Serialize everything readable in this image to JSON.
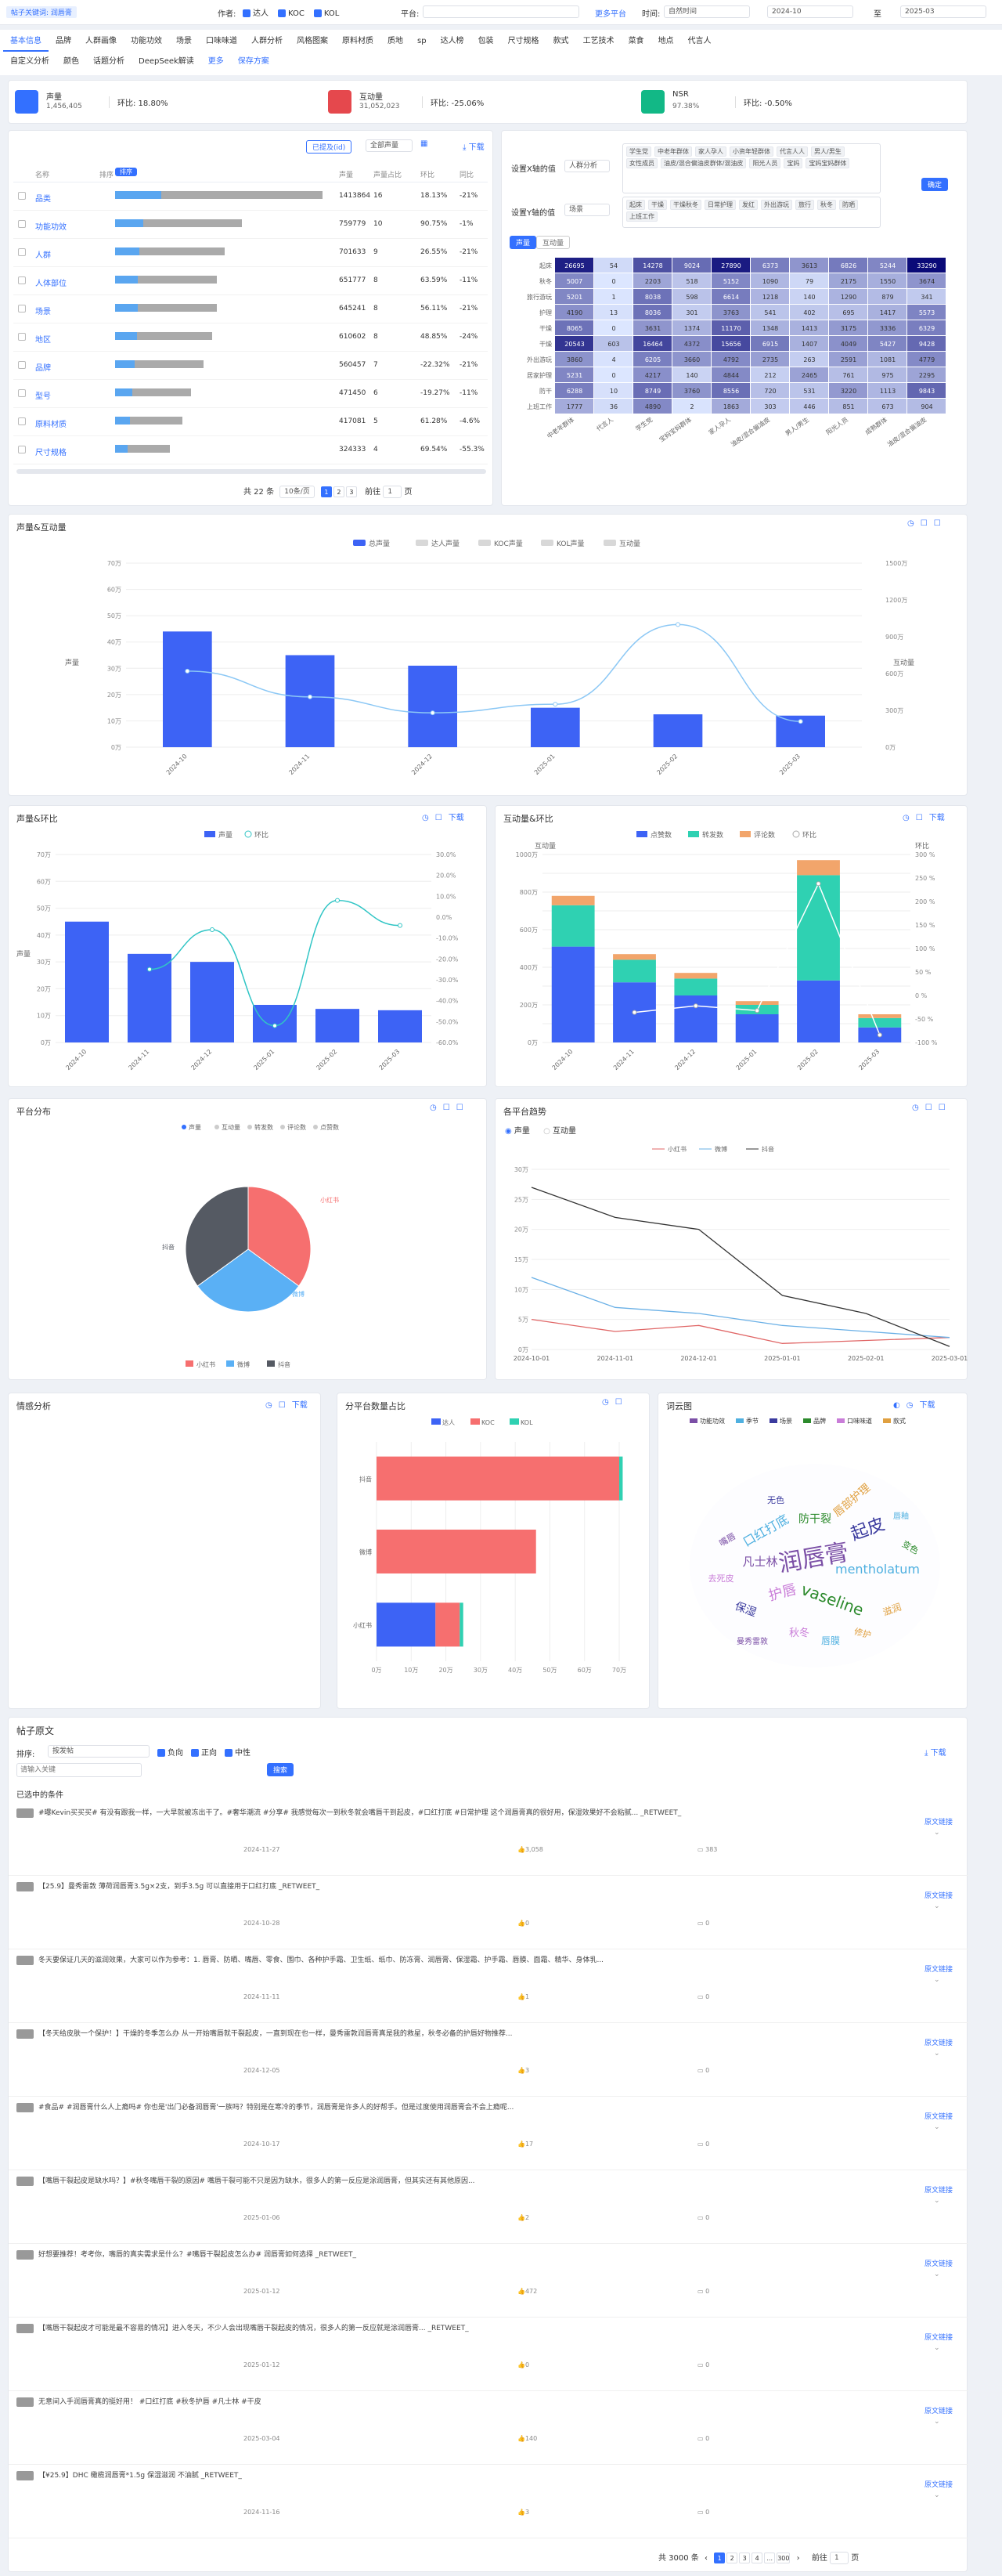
{
  "header": {
    "breadcrumb": "帖子关键词: 润唇膏",
    "author_label": "作者:",
    "author_types": [
      {
        "label": "达人",
        "checked": true
      },
      {
        "label": "KOC",
        "checked": true
      },
      {
        "label": "KOL",
        "checked": true
      }
    ],
    "platform_label": "平台:",
    "platform_value": "",
    "more_platforms": "更多平台",
    "time_label": "时间:",
    "time_select": "自然时间",
    "date_from": "2024-10",
    "date_to_label": "至",
    "date_to": "2025-03"
  },
  "nav": {
    "tabs": [
      "基本信息",
      "品牌",
      "人群画像",
      "功能功效",
      "场景",
      "口味味道",
      "人群分析",
      "风格图案",
      "原料材质",
      "质地",
      "sp",
      "达人榜",
      "包装",
      "尺寸规格",
      "款式",
      "工艺技术",
      "菜食",
      "地点",
      "代言人"
    ],
    "tabs2": [
      "自定义分析",
      "颜色",
      "话题分析",
      "DeepSeek解读",
      "更多",
      "保存方案"
    ]
  },
  "kpis": [
    {
      "label": "声量",
      "value": "1,456,405",
      "ratio": "环比: 18.80%"
    },
    {
      "label": "互动量",
      "value": "31,052,023",
      "ratio": "环比: -25.06%"
    },
    {
      "label": "NSR",
      "value": "97.38%",
      "ratio": "环比: -0.50%"
    }
  ],
  "rank": {
    "filters": [
      "已提及(id)",
      "全部声量"
    ],
    "download": "下载",
    "headers": [
      "",
      "名称",
      "排序",
      "",
      "声量",
      "声量占比",
      "环比",
      "同比"
    ],
    "rows": [
      {
        "name": "品类",
        "share": "1413864",
        "pct": "16",
        "mom": "18.13%",
        "yoy": "-21%",
        "bar": 0.98
      },
      {
        "name": "功能功效",
        "share": "759779",
        "pct": "10",
        "mom": "90.75%",
        "yoy": "-1%",
        "bar": 0.6
      },
      {
        "name": "人群",
        "share": "701633",
        "pct": "9",
        "mom": "26.55%",
        "yoy": "-21%",
        "bar": 0.52
      },
      {
        "name": "人体部位",
        "share": "651777",
        "pct": "8",
        "mom": "63.59%",
        "yoy": "-11%",
        "bar": 0.48
      },
      {
        "name": "场景",
        "share": "645241",
        "pct": "8",
        "mom": "56.11%",
        "yoy": "-21%",
        "bar": 0.48
      },
      {
        "name": "地区",
        "share": "610602",
        "pct": "8",
        "mom": "48.85%",
        "yoy": "-24%",
        "bar": 0.46
      },
      {
        "name": "品牌",
        "share": "560457",
        "pct": "7",
        "mom": "-22.32%",
        "yoy": "-21%",
        "bar": 0.42
      },
      {
        "name": "型号",
        "share": "471450",
        "pct": "6",
        "mom": "-19.27%",
        "yoy": "-11%",
        "bar": 0.36
      },
      {
        "name": "原料材质",
        "share": "417081",
        "pct": "5",
        "mom": "61.28%",
        "yoy": "-4.6%",
        "bar": 0.32
      },
      {
        "name": "尺寸规格",
        "share": "324333",
        "pct": "4",
        "mom": "69.54%",
        "yoy": "-55.3%",
        "bar": 0.26
      }
    ],
    "total": "共 22 条",
    "per_page": "10条/页",
    "pages": [
      "1",
      "2",
      "3"
    ],
    "goto": "前往",
    "page_num": "1",
    "page_unit": "页"
  },
  "heat": {
    "xlabel": "设置X轴的值",
    "xselect": "人群分析",
    "ylabel": "设置Y轴的值",
    "yselect": "场景",
    "xtags": [
      "学生党",
      "中老年群体",
      "家人孕人",
      "小资年轻群体",
      "代言人人",
      "男人/男生",
      "女性成员",
      "油皮/混合偏油皮群体/混油皮",
      "阳光人员",
      "宝妈",
      "宝妈宝妈群体"
    ],
    "ytags": [
      "起床",
      "干燥",
      "干燥秋冬",
      "日常护理",
      "发红",
      "外出游玩",
      "旅行",
      "秋冬",
      "防晒",
      "上班工作"
    ],
    "confirm": "确定",
    "tabs": [
      "声量",
      "互动量"
    ],
    "rows": [
      "起床",
      "秋冬",
      "旅行游玩",
      "护理",
      "干燥",
      "干燥",
      "外出游玩",
      "居家护理",
      "防干",
      "上班工作"
    ],
    "cols": [
      "中老年群体",
      "代言人",
      "学生党",
      "宝妈宝妈群体",
      "家人孕人",
      "油皮/混合偏油皮",
      "男人/男生",
      "阳光人员",
      "成熟群体",
      "油皮/混合偏油皮"
    ],
    "values": [
      [
        26695,
        54,
        14278,
        9024,
        27890,
        6373,
        3613,
        6826,
        5244,
        33290
      ],
      [
        5007,
        0,
        2203,
        518,
        5152,
        1090,
        79,
        2175,
        1550,
        3674
      ],
      [
        5201,
        1,
        8038,
        598,
        6614,
        1218,
        140,
        1290,
        879,
        341
      ],
      [
        4190,
        13,
        8036,
        301,
        3763,
        541,
        402,
        695,
        1417,
        5573
      ],
      [
        8065,
        0,
        3631,
        1374,
        11170,
        1348,
        1413,
        3175,
        3336,
        6329
      ],
      [
        20543,
        603,
        16464,
        4372,
        15656,
        6915,
        1407,
        4049,
        5427,
        9428
      ],
      [
        3860,
        4,
        6205,
        3660,
        4792,
        2735,
        263,
        2591,
        1081,
        4779
      ],
      [
        5231,
        0,
        4217,
        140,
        4844,
        212,
        2465,
        761,
        975,
        2295
      ],
      [
        6288,
        10,
        8749,
        3760,
        8556,
        720,
        531,
        3220,
        1113,
        9843
      ],
      [
        1777,
        36,
        4890,
        2,
        1863,
        303,
        446,
        851,
        673,
        904
      ]
    ]
  },
  "combo1": {
    "title": "声量&互动量",
    "legend": [
      "总声量",
      "达人声量",
      "KOC声量",
      "KOL声量",
      "互动量"
    ],
    "ylabel_left": "声量",
    "ylabel_right": "互动量",
    "categories": [
      "2024-10",
      "2024-11",
      "2024-12",
      "2025-01",
      "2025-02",
      "2025-03"
    ]
  },
  "combo2": {
    "title": "声量&环比",
    "download": "下载",
    "legend": [
      "声量",
      "环比"
    ],
    "ylabel": "声量",
    "categories": [
      "2024-10",
      "2024-11",
      "2024-12",
      "2025-01",
      "2025-02",
      "2025-03"
    ]
  },
  "combo3": {
    "title": "互动量&环比",
    "download": "下载",
    "legend": [
      "点赞数",
      "转发数",
      "评论数",
      "环比"
    ],
    "ylabel_left": "互动量",
    "ylabel_right": "环比",
    "categories": [
      "2024-10",
      "2024-11",
      "2024-12",
      "2025-01",
      "2025-02",
      "2025-03"
    ]
  },
  "pie": {
    "title": "平台分布",
    "legend_top": [
      "声量",
      "互动量",
      "转发数",
      "评论数",
      "点赞数"
    ],
    "legend": [
      "小红书",
      "微博",
      "抖音"
    ],
    "labels": [
      "小红书",
      "微博",
      "抖音"
    ]
  },
  "trend": {
    "title": "各平台趋势",
    "radio": [
      "声量",
      "互动量"
    ],
    "legend": [
      "小红书",
      "微博",
      "抖音"
    ],
    "categories": [
      "2024-10-01",
      "2024-11-01",
      "2024-12-01",
      "2025-01-01",
      "2025-02-01",
      "2025-03-01"
    ]
  },
  "emotion": {
    "title": "情感分析",
    "download": "下载"
  },
  "authorbar": {
    "title": "分平台数量占比",
    "legend": [
      "达人",
      "KOC",
      "KOL"
    ],
    "categories": [
      "抖音",
      "微博",
      "小红书"
    ]
  },
  "wordcloud": {
    "title": "词云图",
    "download": "下载",
    "legend": [
      "功能功效",
      "季节",
      "场景",
      "品牌",
      "口味味道",
      "款式"
    ],
    "words": [
      "润唇膏",
      "口红打底",
      "起皮",
      "vaseline",
      "护唇",
      "唇部护理",
      "凡士林",
      "mentholatum",
      "保湿",
      "防干裂",
      "秋冬",
      "滋润",
      "嘴唇",
      "唇膜",
      "无色",
      "变色",
      "去死皮",
      "修护",
      "曼秀雷敦",
      "唇釉"
    ]
  },
  "posts": {
    "title": "帖子原文",
    "sort_label": "排序:",
    "sort_value": "按发帖",
    "sentiments": [
      "负向",
      "正向",
      "中性"
    ],
    "search_placeholder": "请输入关键",
    "search_btn": "搜索",
    "download": "下载",
    "selected_label": "已选中的条件",
    "origin_link": "原文链接",
    "items": [
      {
        "text": "#曝Kevin买买买# 有没有跟我一样，一大早就被冻出干了。#奢华潮流 #分享# 我感觉每次一到秋冬就会嘴唇干到起皮，#口红打底 #日常护理 这个润唇膏真的很好用，保湿效果好不会粘腻... _RETWEET_",
        "date": "2024-11-27",
        "likes": "3,058",
        "comments": "383"
      },
      {
        "text": "【25.9】曼秀雷敦 薄荷润唇膏3.5g×2支，到手3.5g 可以直接用于口红打底 _RETWEET_",
        "date": "2024-10-28",
        "likes": "0",
        "comments": "0"
      },
      {
        "text": "冬天要保证几天的滋润效果，大家可以作为参考：1. 唇膏、防晒、嘴唇、零食、围巾、各种护手霜、卫生纸、纸巾、防冻膏、润唇膏、保湿霜、护手霜、唇膜、面霜、精华、身体乳...",
        "date": "2024-11-11",
        "likes": "1",
        "comments": "0"
      },
      {
        "text": "【冬天给皮肤一个保护！】干燥的冬季怎么办 从一开始嘴唇就干裂起皮，一直到现在也一样，曼秀雷敦润唇膏真是我的救星，秋冬必备的护唇好物推荐...",
        "date": "2024-12-05",
        "likes": "3",
        "comments": "0"
      },
      {
        "text": "#食品# #润唇膏什么人上瘾吗# 你也是'出门必备润唇膏'一族吗？特别是在寒冷的季节，润唇膏是许多人的好帮手。但是过度使用润唇膏会不会上瘾呢...",
        "date": "2024-10-17",
        "likes": "17",
        "comments": "0"
      },
      {
        "text": "【嘴唇干裂起皮是缺水吗？】#秋冬嘴唇干裂的原因# 嘴唇干裂可能不只是因为缺水，很多人的第一反应是涂润唇膏，但其实还有其他原因...",
        "date": "2025-01-06",
        "likes": "2",
        "comments": "0"
      },
      {
        "text": "好想要推荐！考考你，嘴唇的真实需求是什么？#嘴唇干裂起皮怎么办# 润唇膏如何选择 _RETWEET_",
        "date": "2025-01-12",
        "likes": "472",
        "comments": "0"
      },
      {
        "text": "【嘴唇干裂起皮才可能是最不容易的情况】进入冬天，不少人会出现嘴唇干裂起皮的情况，很多人的第一反应就是涂润唇膏... _RETWEET_",
        "date": "2025-01-12",
        "likes": "0",
        "comments": "0"
      },
      {
        "text": "无意间入手润唇膏真的挺好用！ #口红打底 #秋冬护唇 #凡士林 #干皮",
        "date": "2025-03-04",
        "likes": "140",
        "comments": "0"
      },
      {
        "text": "【¥25.9】DHC 橄榄润唇膏*1.5g 保湿滋润 不油腻 _RETWEET_",
        "date": "2024-11-16",
        "likes": "3",
        "comments": "0"
      }
    ],
    "total": "共 3000 条",
    "pages": [
      "1",
      "2",
      "3",
      "4",
      "...",
      "300"
    ],
    "goto": "前往",
    "page_num": "1",
    "page_unit": "页"
  },
  "chart_data": [
    {
      "type": "bar",
      "title": "声量&互动量",
      "categories": [
        "2024-10",
        "2024-11",
        "2024-12",
        "2025-01",
        "2025-02",
        "2025-03"
      ],
      "series": [
        {
          "name": "总声量",
          "values": [
            440000,
            350000,
            310000,
            150000,
            125000,
            120000
          ]
        },
        {
          "name": "互动量",
          "values": [
            6200000,
            4100000,
            2800000,
            3500000,
            10000000,
            2100000
          ]
        }
      ],
      "ylim": [
        0,
        700000
      ],
      "y2lim": [
        0,
        15000000
      ]
    },
    {
      "type": "bar",
      "title": "声量&环比",
      "categories": [
        "2024-10",
        "2024-11",
        "2024-12",
        "2025-01",
        "2025-02",
        "2025-03"
      ],
      "series": [
        {
          "name": "声量",
          "values": [
            450000,
            330000,
            300000,
            140000,
            125000,
            120000
          ]
        },
        {
          "name": "环比",
          "values": [
            null,
            -25,
            -6,
            -52,
            8,
            -4
          ]
        }
      ],
      "ylim": [
        0,
        700000
      ],
      "y2lim": [
        -60,
        30
      ]
    },
    {
      "type": "bar",
      "title": "互动量&环比",
      "categories": [
        "2024-10",
        "2024-11",
        "2024-12",
        "2025-01",
        "2025-02",
        "2025-03"
      ],
      "series": [
        {
          "name": "点赞数",
          "values": [
            5100000,
            3200000,
            2500000,
            1500000,
            3300000,
            800000
          ]
        },
        {
          "name": "转发数",
          "values": [
            2200000,
            1200000,
            900000,
            500000,
            5600000,
            500000
          ]
        },
        {
          "name": "评论数",
          "values": [
            500000,
            300000,
            300000,
            200000,
            800000,
            200000
          ]
        },
        {
          "name": "环比",
          "values": [
            null,
            -36,
            -22,
            -32,
            238,
            -84
          ]
        }
      ],
      "ylim": [
        0,
        10000000
      ],
      "y2lim": [
        -100,
        300
      ]
    },
    {
      "type": "pie",
      "title": "平台分布",
      "labels": [
        "小红书",
        "微博",
        "抖音"
      ],
      "values": [
        35,
        30,
        35
      ]
    },
    {
      "type": "line",
      "title": "各平台趋势",
      "categories": [
        "2024-10-01",
        "2024-11-01",
        "2024-12-01",
        "2025-01-01",
        "2025-02-01",
        "2025-03-01"
      ],
      "series": [
        {
          "name": "小红书",
          "values": [
            50000,
            30000,
            40000,
            10000,
            15000,
            20000
          ]
        },
        {
          "name": "微博",
          "values": [
            120000,
            70000,
            60000,
            40000,
            30000,
            20000
          ]
        },
        {
          "name": "抖音",
          "values": [
            270000,
            220000,
            200000,
            90000,
            60000,
            5000
          ]
        }
      ],
      "ylim": [
        0,
        300000
      ]
    },
    {
      "type": "bar",
      "title": "分平台数量占比",
      "categories": [
        "抖音",
        "微博",
        "小红书"
      ],
      "series": [
        {
          "name": "达人",
          "values": [
            0,
            0,
            17
          ]
        },
        {
          "name": "KOC",
          "values": [
            70,
            46,
            7
          ]
        },
        {
          "name": "KOL",
          "values": [
            1,
            0,
            1
          ]
        }
      ],
      "xlim": [
        0,
        70
      ]
    }
  ]
}
